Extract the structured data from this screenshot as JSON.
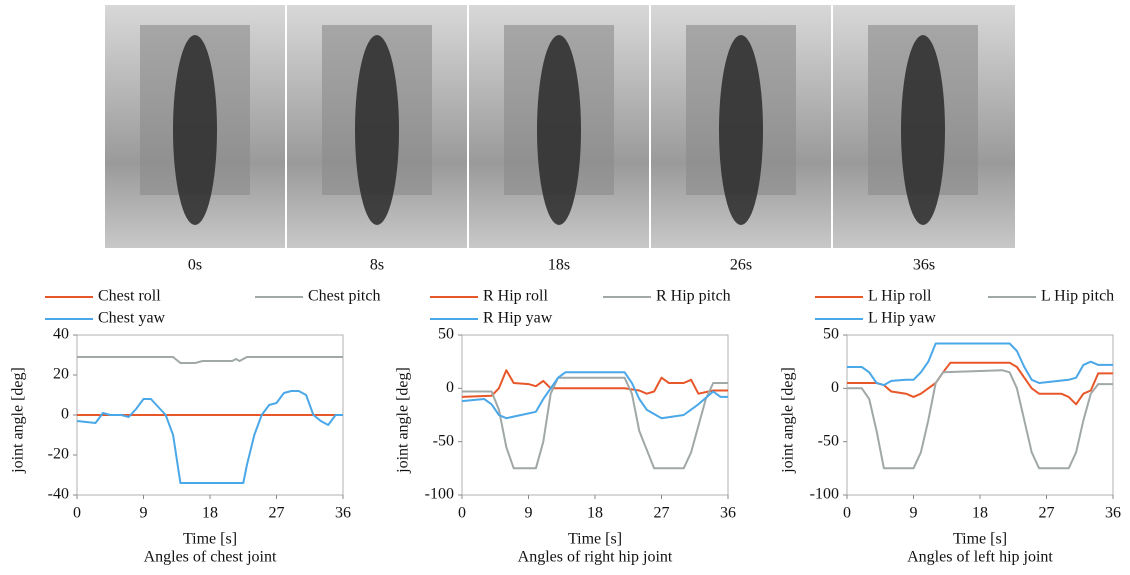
{
  "photos": {
    "captions": [
      "0s",
      "8s",
      "18s",
      "26s",
      "36s"
    ]
  },
  "chart_data": [
    {
      "type": "line",
      "title": "Angles of chest joint",
      "xlabel": "Time [s]",
      "ylabel": "joint angle [deg]",
      "xlim": [
        0,
        36
      ],
      "xticks": [
        0,
        9,
        18,
        27,
        36
      ],
      "ylim": [
        -40,
        40
      ],
      "yticks": [
        -40,
        -20,
        0,
        20,
        40
      ],
      "series": [
        {
          "name": "Chest roll",
          "color": "#e8572a",
          "x": [
            0,
            36
          ],
          "values": [
            0,
            0
          ]
        },
        {
          "name": "Chest pitch",
          "color": "#a0a8a8",
          "x": [
            0,
            13,
            14,
            16,
            17,
            21,
            21.5,
            22,
            23,
            36
          ],
          "values": [
            29,
            29,
            26,
            26,
            27,
            27,
            28,
            27,
            29,
            29
          ]
        },
        {
          "name": "Chest yaw",
          "color": "#4aa8e8",
          "x": [
            0,
            2.5,
            3.5,
            4.5,
            6,
            7,
            8,
            9,
            10,
            11,
            12,
            13,
            14,
            22.5,
            23,
            24,
            25,
            26,
            27,
            28,
            29,
            30,
            31,
            32,
            33,
            34,
            35,
            36
          ],
          "values": [
            -3,
            -4,
            1,
            0,
            0,
            -1,
            3,
            8,
            8,
            4,
            0,
            -10,
            -34,
            -34,
            -25,
            -10,
            0,
            5,
            6,
            11,
            12,
            12,
            10,
            0,
            -3,
            -5,
            0,
            0
          ]
        }
      ]
    },
    {
      "type": "line",
      "title": "Angles of right hip joint",
      "xlabel": "Time [s]",
      "ylabel": "joint angle [deg]",
      "xlim": [
        0,
        36
      ],
      "xticks": [
        0,
        9,
        18,
        27,
        36
      ],
      "ylim": [
        -100,
        50
      ],
      "yticks": [
        -100,
        -50,
        0,
        50
      ],
      "series": [
        {
          "name": "R Hip roll",
          "color": "#e8572a",
          "x": [
            0,
            4,
            5,
            6,
            7,
            9,
            10,
            11,
            12,
            14,
            22,
            24,
            25,
            26,
            27,
            28,
            30,
            31,
            32,
            34,
            36
          ],
          "values": [
            -8,
            -7,
            0,
            17,
            5,
            4,
            2,
            7,
            0,
            0,
            0,
            -2,
            -5,
            -3,
            10,
            5,
            5,
            8,
            -5,
            -2,
            -2
          ]
        },
        {
          "name": "R Hip pitch",
          "color": "#a0a8a8",
          "x": [
            0,
            4,
            5,
            6,
            7,
            10,
            11,
            12,
            13,
            22,
            23,
            24,
            26,
            30,
            31,
            33,
            34,
            36
          ],
          "values": [
            -3,
            -3,
            -20,
            -55,
            -75,
            -75,
            -50,
            -5,
            10,
            10,
            -5,
            -40,
            -75,
            -75,
            -60,
            -10,
            5,
            5
          ]
        },
        {
          "name": "R Hip yaw",
          "color": "#4aa8e8",
          "x": [
            0,
            3,
            4,
            5,
            6,
            8,
            10,
            11,
            12,
            13,
            14,
            22,
            23,
            24,
            25,
            27,
            30,
            32,
            34,
            35,
            36
          ],
          "values": [
            -12,
            -10,
            -15,
            -25,
            -28,
            -25,
            -22,
            -10,
            0,
            10,
            15,
            15,
            5,
            -10,
            -20,
            -28,
            -25,
            -15,
            -3,
            -8,
            -8
          ]
        }
      ]
    },
    {
      "type": "line",
      "title": "Angles of left hip joint",
      "xlabel": "Time [s]",
      "ylabel": "joint angle [deg]",
      "xlim": [
        0,
        36
      ],
      "xticks": [
        0,
        9,
        18,
        27,
        36
      ],
      "ylim": [
        -100,
        50
      ],
      "yticks": [
        -100,
        -50,
        0,
        50
      ],
      "series": [
        {
          "name": "L Hip roll",
          "color": "#e8572a",
          "x": [
            0,
            4,
            5,
            6,
            8,
            9,
            10,
            11,
            12,
            13,
            14,
            22,
            23,
            24,
            25,
            26,
            29,
            30,
            31,
            32,
            33,
            34,
            36
          ],
          "values": [
            5,
            5,
            3,
            -3,
            -5,
            -8,
            -5,
            0,
            5,
            15,
            24,
            24,
            20,
            10,
            0,
            -5,
            -5,
            -8,
            -15,
            -5,
            -2,
            14,
            14
          ]
        },
        {
          "name": "L Hip pitch",
          "color": "#a0a8a8",
          "x": [
            0,
            2,
            3,
            4,
            5,
            9,
            10,
            11,
            12,
            13,
            21,
            22,
            23,
            24,
            25,
            26,
            30,
            31,
            32,
            33,
            34,
            36
          ],
          "values": [
            0,
            0,
            -10,
            -40,
            -75,
            -75,
            -60,
            -30,
            5,
            15,
            17,
            15,
            0,
            -30,
            -60,
            -75,
            -75,
            -60,
            -30,
            -5,
            4,
            4
          ]
        },
        {
          "name": "L Hip yaw",
          "color": "#4aa8e8",
          "x": [
            0,
            2,
            3,
            4,
            5,
            6,
            8,
            9,
            10,
            11,
            12,
            22,
            23,
            24,
            25,
            26,
            30,
            31,
            32,
            33,
            34,
            36
          ],
          "values": [
            20,
            20,
            15,
            5,
            3,
            7,
            8,
            8,
            15,
            25,
            42,
            42,
            35,
            20,
            8,
            5,
            8,
            10,
            22,
            25,
            22,
            22
          ]
        }
      ]
    }
  ]
}
